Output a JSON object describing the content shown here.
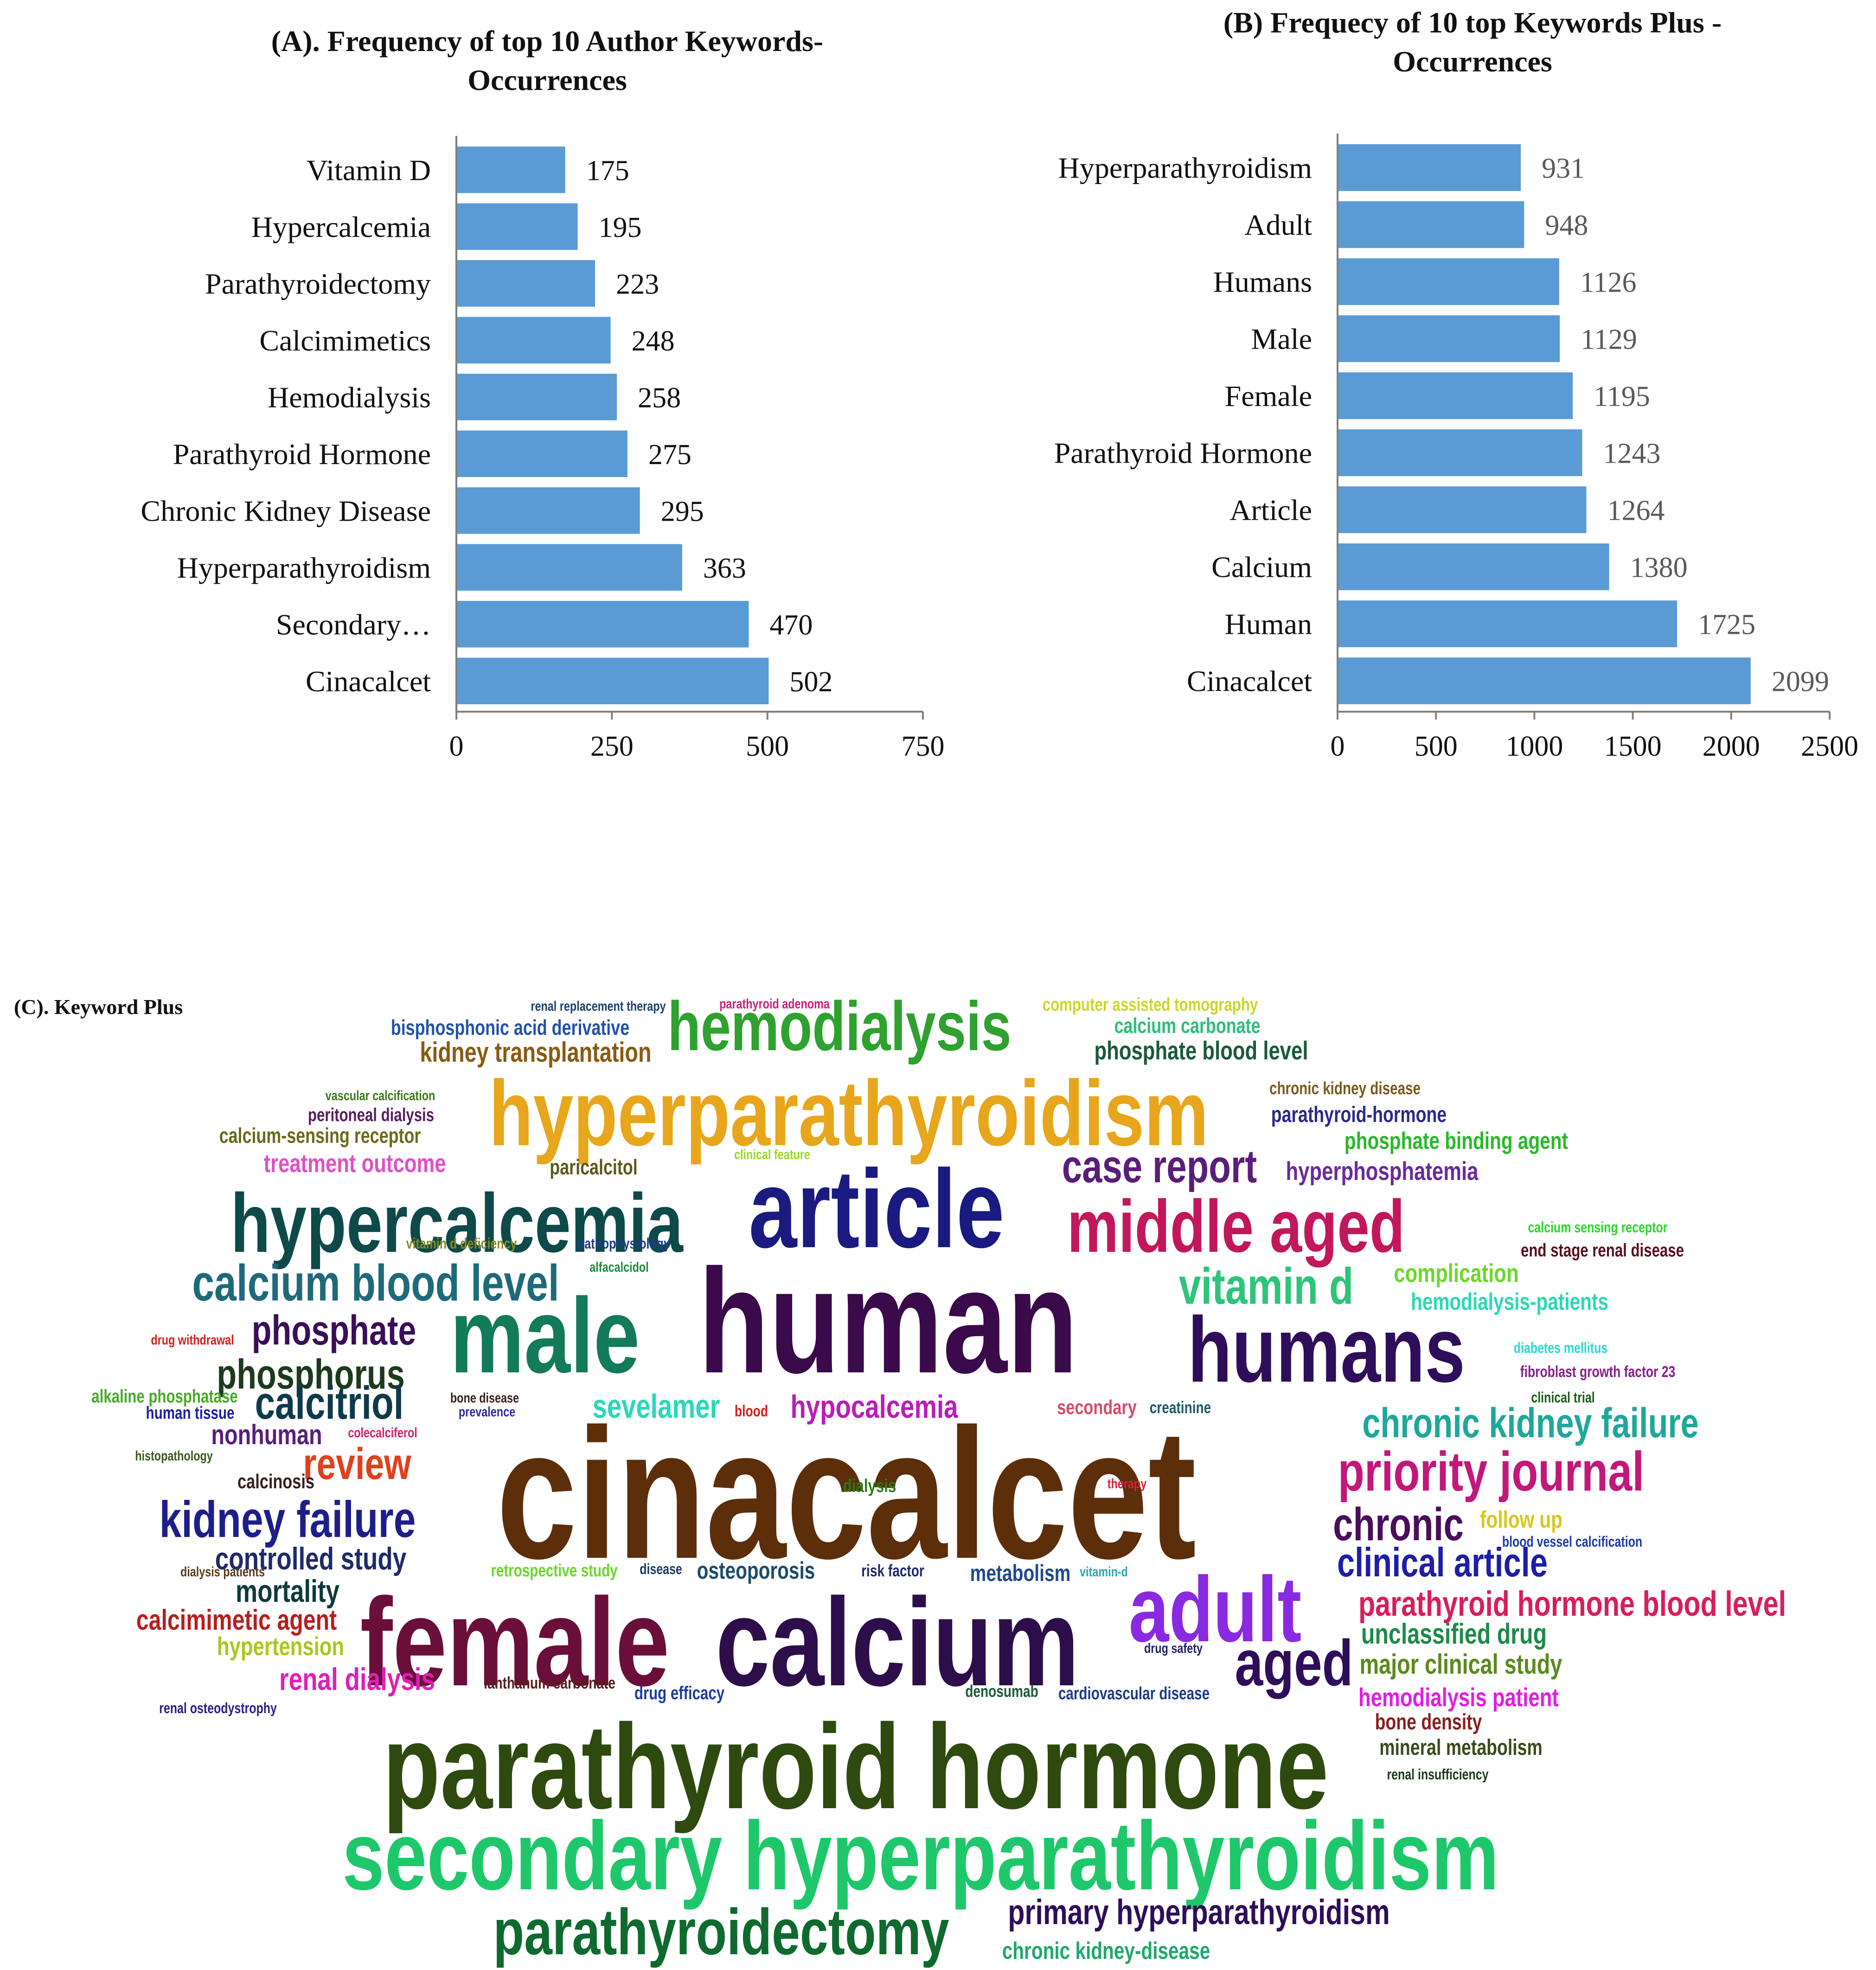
{
  "chart_data": [
    {
      "type": "bar",
      "orientation": "horizontal",
      "title": "(A). Frequency of top 10 Author Keywords- Occurrences",
      "title_lines": [
        "(A). Frequency of top 10 Author Keywords-",
        "Occurrences"
      ],
      "categories": [
        "Vitamin D",
        "Hypercalcemia",
        "Parathyroidectomy",
        "Calcimimetics",
        "Hemodialysis",
        "Parathyroid Hormone",
        "Chronic Kidney Disease",
        "Hyperparathyroidism",
        "Secondary…",
        "Cinacalcet"
      ],
      "values": [
        175,
        195,
        223,
        248,
        258,
        275,
        295,
        363,
        470,
        502
      ],
      "xlim": [
        0,
        750
      ],
      "xticks": [
        0,
        250,
        500,
        750
      ],
      "bar_color": "#5b9bd5",
      "grid": false
    },
    {
      "type": "bar",
      "orientation": "horizontal",
      "title": "(B) Frequecy of 10 top Keywords Plus - Occurrences",
      "title_lines": [
        "(B) Frequecy of 10 top Keywords Plus -",
        "Occurrences"
      ],
      "categories": [
        "Hyperparathyroidism",
        "Adult",
        "Humans",
        "Male",
        "Female",
        "Parathyroid Hormone",
        "Article",
        "Calcium",
        "Human",
        "Cinacalcet"
      ],
      "values": [
        931,
        948,
        1126,
        1129,
        1195,
        1243,
        1264,
        1380,
        1725,
        2099
      ],
      "xlim": [
        0,
        2500
      ],
      "xticks": [
        0,
        500,
        1000,
        1500,
        2000,
        2500
      ],
      "bar_color": "#5b9bd5",
      "grid": false
    }
  ],
  "word_cloud": {
    "title": "(C). Keyword Plus",
    "words": [
      {
        "text": "renal replacement therapy",
        "color": "#1f3f6e"
      },
      {
        "text": "parathyroid adenoma",
        "color": "#d11f7a"
      },
      {
        "text": "computer assisted tomography",
        "color": "#c8d82a"
      },
      {
        "text": "bisphosphonic acid derivative",
        "color": "#2452a8"
      },
      {
        "text": "hemodialysis",
        "color": "#2ea12e"
      },
      {
        "text": "calcium carbonate",
        "color": "#2bbf7a"
      },
      {
        "text": "kidney transplantation",
        "color": "#8a5a12"
      },
      {
        "text": "phosphate blood level",
        "color": "#1a5a3a"
      },
      {
        "text": "chronic kidney disease",
        "color": "#7a5a1e"
      },
      {
        "text": "vascular calcification",
        "color": "#3a7a1a"
      },
      {
        "text": "hyperparathyroidism",
        "color": "#e8a61c"
      },
      {
        "text": "peritoneal dialysis",
        "color": "#5a1e5a"
      },
      {
        "text": "parathyroid-hormone",
        "color": "#2a2a8a"
      },
      {
        "text": "calcium-sensing receptor",
        "color": "#6a6a1e"
      },
      {
        "text": "phosphate binding agent",
        "color": "#2ab82a"
      },
      {
        "text": "clinical feature",
        "color": "#9ad82a"
      },
      {
        "text": "treatment outcome",
        "color": "#e04fc8"
      },
      {
        "text": "paricalcitol",
        "color": "#5a5a1e"
      },
      {
        "text": "case report",
        "color": "#5a1e7a"
      },
      {
        "text": "hyperphosphatemia",
        "color": "#6a2a9a"
      },
      {
        "text": "hypercalcemia",
        "color": "#0e4a4a"
      },
      {
        "text": "article",
        "color": "#1a1a80"
      },
      {
        "text": "middle aged",
        "color": "#c2185b"
      },
      {
        "text": "calcium sensing receptor",
        "color": "#2ad82a"
      },
      {
        "text": "vitamin d deficiency",
        "color": "#8a8a1e"
      },
      {
        "text": "pathophysiology",
        "color": "#1e3a8a"
      },
      {
        "text": "end stage renal disease",
        "color": "#5a0e1e"
      },
      {
        "text": "alfacalcidol",
        "color": "#1e8a3a"
      },
      {
        "text": "calcium blood level",
        "color": "#1e6a7a"
      },
      {
        "text": "complication",
        "color": "#6ad82a"
      },
      {
        "text": "vitamin d",
        "color": "#2ec47a"
      },
      {
        "text": "hemodialysis-patients",
        "color": "#2ad8b8"
      },
      {
        "text": "phosphate",
        "color": "#3a0e5a"
      },
      {
        "text": "male",
        "color": "#137a5a"
      },
      {
        "text": "human",
        "color": "#3a0a4a"
      },
      {
        "text": "humans",
        "color": "#2e0e5a"
      },
      {
        "text": "drug withdrawal",
        "color": "#d81e1e"
      },
      {
        "text": "diabetes mellitus",
        "color": "#2ad8d8"
      },
      {
        "text": "phosphorus",
        "color": "#1e3a1e"
      },
      {
        "text": "fibroblast growth factor 23",
        "color": "#8a1e8a"
      },
      {
        "text": "alkaline phosphatase",
        "color": "#4aa82a"
      },
      {
        "text": "bone disease",
        "color": "#3a1e1e"
      },
      {
        "text": "calcitriol",
        "color": "#0e3a4a"
      },
      {
        "text": "sevelamer",
        "color": "#2ad8b8"
      },
      {
        "text": "blood",
        "color": "#d81e1e"
      },
      {
        "text": "hypocalcemia",
        "color": "#b81eb8"
      },
      {
        "text": "secondary",
        "color": "#d84a6a"
      },
      {
        "text": "creatinine",
        "color": "#1e5a6a"
      },
      {
        "text": "clinical trial",
        "color": "#1e5a1e"
      },
      {
        "text": "human tissue",
        "color": "#1e1ea8"
      },
      {
        "text": "prevalence",
        "color": "#2a2aa8"
      },
      {
        "text": "chronic kidney failure",
        "color": "#1ea89a"
      },
      {
        "text": "nonhuman",
        "color": "#5a1e7a"
      },
      {
        "text": "colecalciferol",
        "color": "#d81e6a"
      },
      {
        "text": "histopathology",
        "color": "#3a5a1e"
      },
      {
        "text": "cinacalcet",
        "color": "#5c2e0a"
      },
      {
        "text": "review",
        "color": "#e0401e"
      },
      {
        "text": "priority journal",
        "color": "#c2187a"
      },
      {
        "text": "calcinosis",
        "color": "#3a1e1e"
      },
      {
        "text": "therapy",
        "color": "#e01e3a"
      },
      {
        "text": "dialysis",
        "color": "#2a7a1e"
      },
      {
        "text": "kidney failure",
        "color": "#1e1e8a"
      },
      {
        "text": "chronic",
        "color": "#4a0e5a"
      },
      {
        "text": "follow up",
        "color": "#d8c81e"
      },
      {
        "text": "blood vessel calcification",
        "color": "#1e3aa8"
      },
      {
        "text": "controlled study",
        "color": "#1e2a6a"
      },
      {
        "text": "clinical article",
        "color": "#1e1ea8"
      },
      {
        "text": "dialysis patients",
        "color": "#5a3a1e"
      },
      {
        "text": "retrospective study",
        "color": "#6ad82a"
      },
      {
        "text": "disease",
        "color": "#1e3a6a"
      },
      {
        "text": "osteoporosis",
        "color": "#1e4a6a"
      },
      {
        "text": "risk factor",
        "color": "#1e2a6a"
      },
      {
        "text": "metabolism",
        "color": "#1e4a8a"
      },
      {
        "text": "vitamin-d",
        "color": "#2aa8a8"
      },
      {
        "text": "mortality",
        "color": "#0e3a3a"
      },
      {
        "text": "adult",
        "color": "#8a2ae0"
      },
      {
        "text": "parathyroid hormone blood level",
        "color": "#d81e5a"
      },
      {
        "text": "calcimimetic agent",
        "color": "#b81e1e"
      },
      {
        "text": "female",
        "color": "#6a0e3a"
      },
      {
        "text": "calcium",
        "color": "#2e0e4a"
      },
      {
        "text": "unclassified drug",
        "color": "#1e8a4a"
      },
      {
        "text": "hypertension",
        "color": "#a8c81e"
      },
      {
        "text": "drug safety",
        "color": "#1e1e6a"
      },
      {
        "text": "aged",
        "color": "#2e0e5a"
      },
      {
        "text": "major clinical study",
        "color": "#5a8a1e"
      },
      {
        "text": "renal dialysis",
        "color": "#e01eb8"
      },
      {
        "text": "lanthanum carbonate",
        "color": "#5a1e1e"
      },
      {
        "text": "drug efficacy",
        "color": "#1e3aa8"
      },
      {
        "text": "denosumab",
        "color": "#1e5a3a"
      },
      {
        "text": "cardiovascular disease",
        "color": "#1e3a8a"
      },
      {
        "text": "hemodialysis patient",
        "color": "#e01ee0"
      },
      {
        "text": "renal osteodystrophy",
        "color": "#2a1e8a"
      },
      {
        "text": "bone density",
        "color": "#8a1e1e"
      },
      {
        "text": "parathyroid hormone",
        "color": "#2e4a0e"
      },
      {
        "text": "mineral metabolism",
        "color": "#3a4a1e"
      },
      {
        "text": "renal insufficiency",
        "color": "#1e3a1e"
      },
      {
        "text": "secondary hyperparathyroidism",
        "color": "#1ec86a"
      },
      {
        "text": "parathyroidectomy",
        "color": "#0e6a2e"
      },
      {
        "text": "primary hyperparathyroidism",
        "color": "#2e0e5a"
      },
      {
        "text": "chronic kidney-disease",
        "color": "#1ea86a"
      }
    ]
  }
}
